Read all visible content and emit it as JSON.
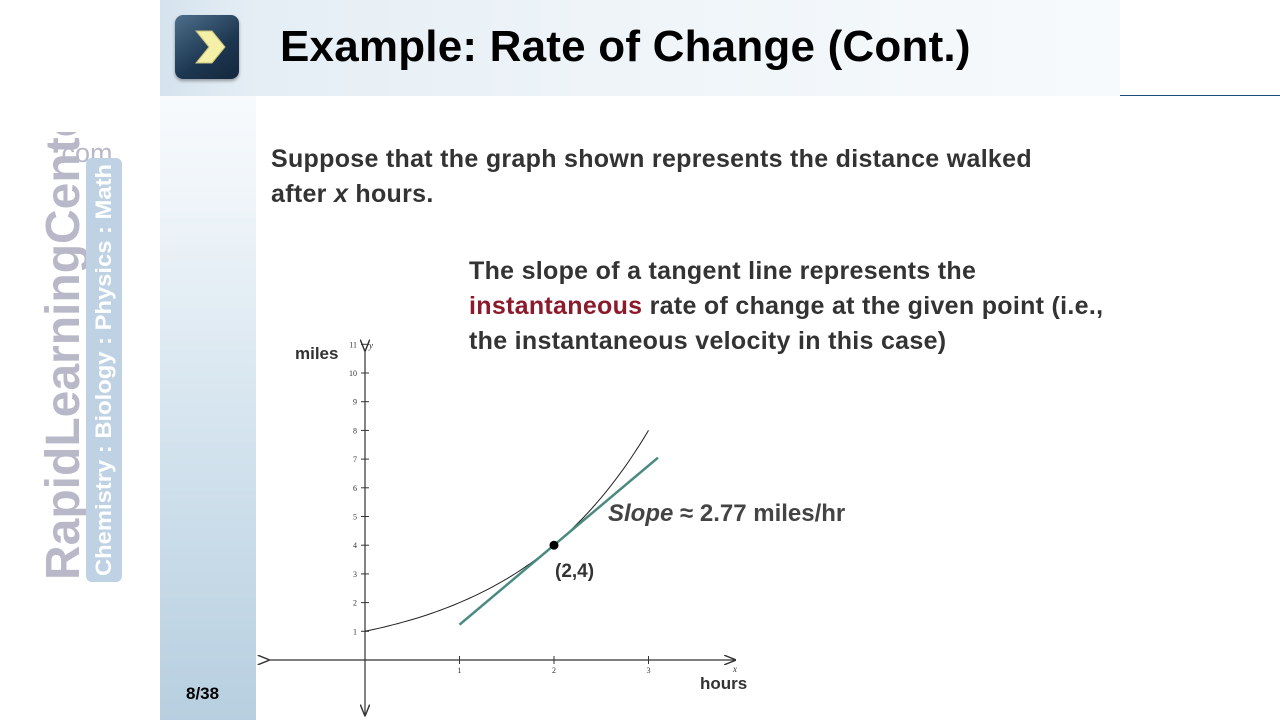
{
  "slide": {
    "title": "Example: Rate of Change (Cont.)",
    "page_number": "8/38",
    "title_icon": "chevron-right-icon"
  },
  "logo": {
    "brand": "RapidLearningCenter",
    "domain": ".com",
    "subjects": "Chemistry : Biology : Physics : Math"
  },
  "content": {
    "intro_part1": "Suppose that the graph shown represents the distance walked after",
    "intro_variable": "x",
    "intro_part2": "hours.",
    "tangent_part1": "The slope of a tangent line represents the",
    "tangent_highlight": "instantaneous",
    "tangent_part2": "rate of change at the given point (i.e., the instantaneous velocity in this case)",
    "highlight_color": "#8b1a2b"
  },
  "graph": {
    "y_unit_label": "miles",
    "x_unit_label": "hours",
    "y_axis_letter": "y",
    "x_axis_letter": "x",
    "slope_word": "Slope",
    "slope_approx": "≈ 2.77 miles/hr",
    "point_label": "(2,4)",
    "tangent_color": "#4a8a80"
  },
  "chart_data": {
    "type": "line",
    "x_ticks": [
      "1",
      "2",
      "3"
    ],
    "y_ticks": [
      "1",
      "2",
      "3",
      "4",
      "5",
      "6",
      "7",
      "8",
      "9",
      "10",
      "11"
    ],
    "xlim": [
      -1,
      4
    ],
    "ylim": [
      -1.5,
      11
    ],
    "series": [
      {
        "x": [
          0,
          0.5,
          1,
          1.5,
          2,
          2.5,
          3
        ],
        "y": [
          1,
          1.41,
          2,
          2.83,
          4,
          5.66,
          8
        ]
      }
    ],
    "tangent": {
      "x": [
        1,
        3.1
      ],
      "y": [
        1.23,
        7.05
      ],
      "slope": 2.77
    },
    "point": {
      "x": 2,
      "y": 4
    },
    "grid": false
  }
}
